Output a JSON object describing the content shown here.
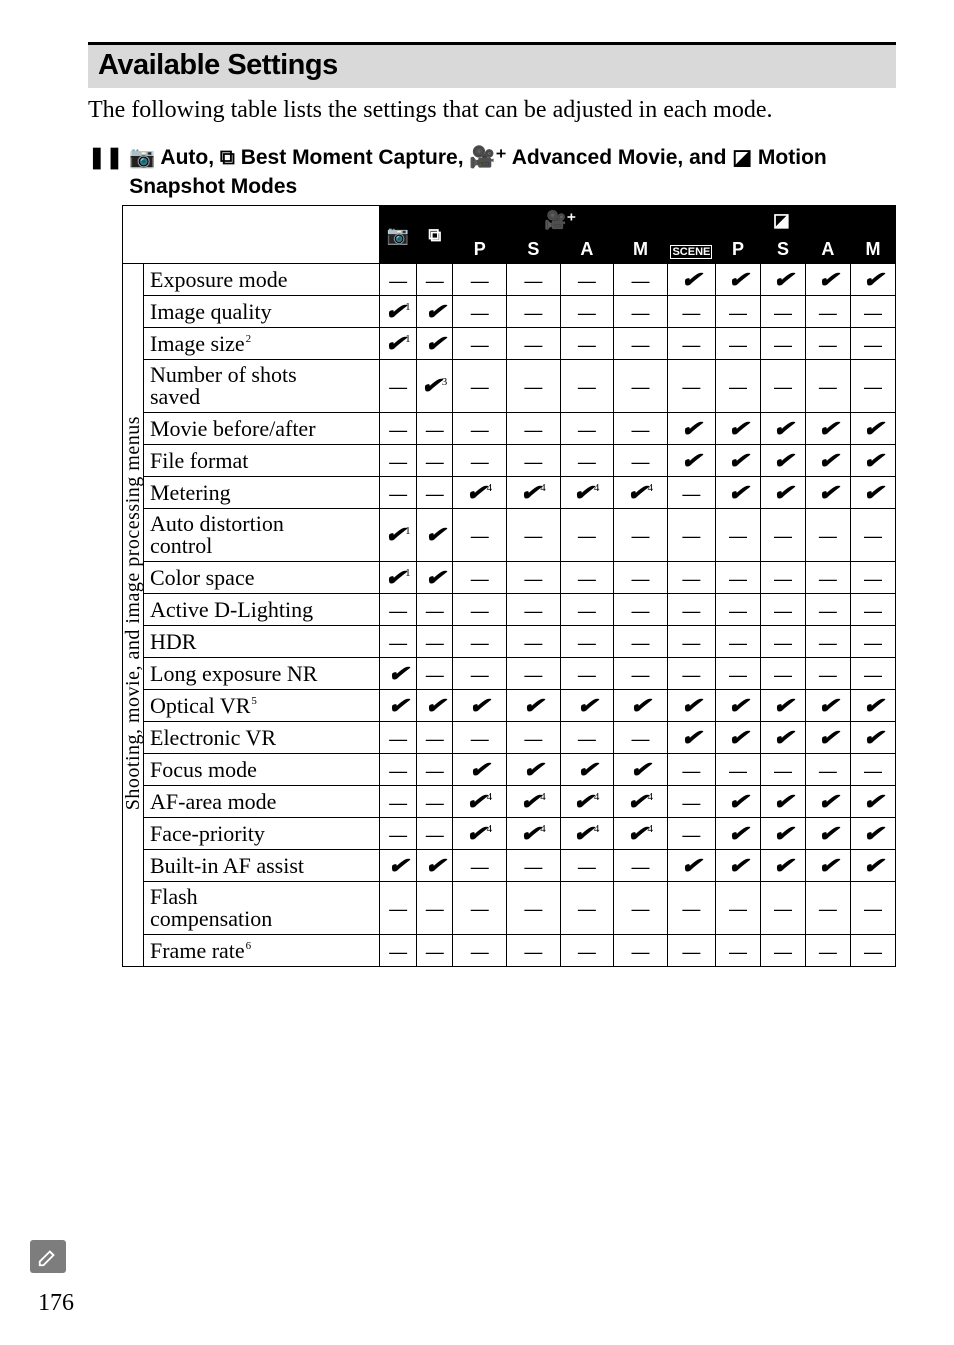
{
  "page_number": "176",
  "heading": "Available Settings",
  "intro": "The following table lists the settings that can be adjusted in each mode.",
  "subhead_line1_prefix": "❚❚",
  "subhead_line1": " 📷 Auto, ⧉ Best Moment Capture, 🎥⁺ Advanced Movie, and ◪ Motion",
  "subhead_line2": "Snapshot Modes",
  "side_label": "Shooting, movie, and image processing menus",
  "group_headers": {
    "movie": "🎥⁺",
    "motion": "◪"
  },
  "col_headers": {
    "c1": "📷",
    "c2": "⧉",
    "c3": "P",
    "c4": "S",
    "c5": "A",
    "c6": "M",
    "c7": "SCENE",
    "c8": "P",
    "c9": "S",
    "c10": "A",
    "c11": "M"
  },
  "marks": {
    "check": "✔",
    "dash": "—"
  },
  "rows": [
    {
      "label": "Exposure mode",
      "cells": [
        "d",
        "d",
        "d",
        "d",
        "d",
        "d",
        "c",
        "c",
        "c",
        "c",
        "c"
      ]
    },
    {
      "label": "Image quality",
      "cells": [
        "c1",
        "c",
        "d",
        "d",
        "d",
        "d",
        "d",
        "d",
        "d",
        "d",
        "d"
      ]
    },
    {
      "label": "Image size",
      "sup": "2",
      "cells": [
        "c1",
        "c",
        "d",
        "d",
        "d",
        "d",
        "d",
        "d",
        "d",
        "d",
        "d"
      ]
    },
    {
      "label": "Number of shots\nsaved",
      "cells": [
        "d",
        "c3",
        "d",
        "d",
        "d",
        "d",
        "d",
        "d",
        "d",
        "d",
        "d"
      ]
    },
    {
      "label": "Movie before/after",
      "cells": [
        "d",
        "d",
        "d",
        "d",
        "d",
        "d",
        "c",
        "c",
        "c",
        "c",
        "c"
      ]
    },
    {
      "label": "File format",
      "cells": [
        "d",
        "d",
        "d",
        "d",
        "d",
        "d",
        "c",
        "c",
        "c",
        "c",
        "c"
      ]
    },
    {
      "label": "Metering",
      "cells": [
        "d",
        "d",
        "c4",
        "c4",
        "c4",
        "c4",
        "d",
        "c",
        "c",
        "c",
        "c"
      ]
    },
    {
      "label": "Auto distortion\ncontrol",
      "cells": [
        "c1",
        "c",
        "d",
        "d",
        "d",
        "d",
        "d",
        "d",
        "d",
        "d",
        "d"
      ]
    },
    {
      "label": "Color space",
      "cells": [
        "c1",
        "c",
        "d",
        "d",
        "d",
        "d",
        "d",
        "d",
        "d",
        "d",
        "d"
      ]
    },
    {
      "label": "Active D-Lighting",
      "cells": [
        "d",
        "d",
        "d",
        "d",
        "d",
        "d",
        "d",
        "d",
        "d",
        "d",
        "d"
      ]
    },
    {
      "label": "HDR",
      "cells": [
        "d",
        "d",
        "d",
        "d",
        "d",
        "d",
        "d",
        "d",
        "d",
        "d",
        "d"
      ]
    },
    {
      "label": "Long exposure NR",
      "cells": [
        "c",
        "d",
        "d",
        "d",
        "d",
        "d",
        "d",
        "d",
        "d",
        "d",
        "d"
      ]
    },
    {
      "label": "Optical VR",
      "sup": "5",
      "cells": [
        "c",
        "c",
        "c",
        "c",
        "c",
        "c",
        "c",
        "c",
        "c",
        "c",
        "c"
      ]
    },
    {
      "label": "Electronic VR",
      "cells": [
        "d",
        "d",
        "d",
        "d",
        "d",
        "d",
        "c",
        "c",
        "c",
        "c",
        "c"
      ]
    },
    {
      "label": "Focus mode",
      "cells": [
        "d",
        "d",
        "c",
        "c",
        "c",
        "c",
        "d",
        "d",
        "d",
        "d",
        "d"
      ]
    },
    {
      "label": "AF-area mode",
      "cells": [
        "d",
        "d",
        "c4",
        "c4",
        "c4",
        "c4",
        "d",
        "c",
        "c",
        "c",
        "c"
      ]
    },
    {
      "label": "Face-priority",
      "cells": [
        "d",
        "d",
        "c4",
        "c4",
        "c4",
        "c4",
        "d",
        "c",
        "c",
        "c",
        "c"
      ]
    },
    {
      "label": "Built-in AF assist",
      "cells": [
        "c",
        "c",
        "d",
        "d",
        "d",
        "d",
        "c",
        "c",
        "c",
        "c",
        "c"
      ]
    },
    {
      "label": "Flash\ncompensation",
      "cells": [
        "d",
        "d",
        "d",
        "d",
        "d",
        "d",
        "d",
        "d",
        "d",
        "d",
        "d"
      ]
    },
    {
      "label": "Frame rate",
      "sup": "6",
      "cells": [
        "d",
        "d",
        "d",
        "d",
        "d",
        "d",
        "d",
        "d",
        "d",
        "d",
        "d"
      ]
    }
  ],
  "col_widths": {
    "label_col": 232,
    "c1": 38,
    "c2": 38,
    "c3": 58,
    "c4": 58,
    "c5": 58,
    "c6": 58,
    "c7": 48,
    "c8": 40,
    "c9": 40,
    "c10": 40,
    "c11": 40
  }
}
